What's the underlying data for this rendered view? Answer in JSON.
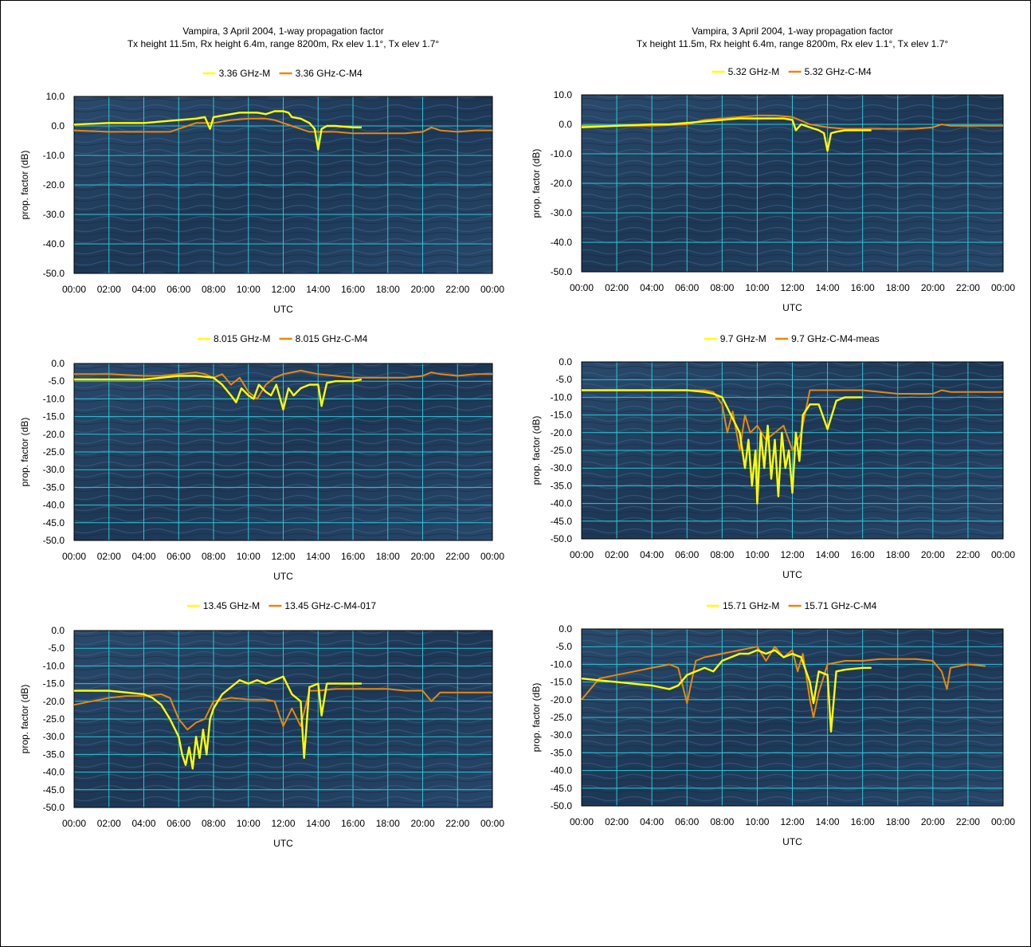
{
  "colors": {
    "series_measured": "#ffff00",
    "series_model": "#e8880c",
    "grid": "#2ec6d6",
    "plot_background": "#1f3a58"
  },
  "x_ticks": [
    "00:00",
    "02:00",
    "04:00",
    "06:00",
    "08:00",
    "10:00",
    "12:00",
    "14:00",
    "16:00",
    "18:00",
    "20:00",
    "22:00",
    "00:00"
  ],
  "charts": [
    {
      "title_line1": "Vampira, 3 April 2004, 1-way propagation factor",
      "title_line2": "Tx height 11.5m, Rx height 6.4m, range 8200m, Rx elev 1.1°, Tx elev 1.7°",
      "xlabel": "UTC",
      "ylabel": "prop. factor (dB)",
      "legend": [
        "3.36 GHz-M",
        "3.36 GHz-C-M4"
      ],
      "y_ticks": [
        "10.0",
        "0.0",
        "-10.0",
        "-20.0",
        "-30.0",
        "-40.0",
        "-50.0"
      ]
    },
    {
      "title_line1": "Vampira, 3 April 2004, 1-way propagation factor",
      "title_line2": "Tx height 11.5m, Rx height 6.4m, range 8200m, Rx elev 1.1°, Tx elev 1.7°",
      "xlabel": "UTC",
      "ylabel": "prop. factor (dB)",
      "legend": [
        "5.32 GHz-M",
        "5.32 GHz-C-M4"
      ],
      "y_ticks": [
        "10.0",
        "0.0",
        "-10.0",
        "-20.0",
        "-30.0",
        "-40.0",
        "-50.0"
      ]
    },
    {
      "title_line1": "",
      "title_line2": "",
      "xlabel": "UTC",
      "ylabel": "prop. factor (dB)",
      "legend": [
        "8.015 GHz-M",
        "8.015 GHz-C-M4"
      ],
      "y_ticks": [
        "0.0",
        "-5.0",
        "-10.0",
        "-15.0",
        "-20.0",
        "-25.0",
        "-30.0",
        "-35.0",
        "-40.0",
        "-45.0",
        "-50.0"
      ]
    },
    {
      "title_line1": "",
      "title_line2": "",
      "xlabel": "UTC",
      "ylabel": "prop. factor (dB)",
      "legend": [
        "9.7 GHz-M",
        "9.7 GHz-C-M4-meas"
      ],
      "y_ticks": [
        "0.0",
        "-5.0",
        "-10.0",
        "-15.0",
        "-20.0",
        "-25.0",
        "-30.0",
        "-35.0",
        "-40.0",
        "-45.0",
        "-50.0"
      ]
    },
    {
      "title_line1": "",
      "title_line2": "",
      "xlabel": "UTC",
      "ylabel": "prop. factor (dB)",
      "legend": [
        "13.45 GHz-M",
        "13.45 GHz-C-M4-017"
      ],
      "y_ticks": [
        "0.0",
        "-5.0",
        "-10.0",
        "-15.0",
        "-20.0",
        "-25.0",
        "-30.0",
        "-35.0",
        "-40.0",
        "-45.0",
        "-50.0"
      ]
    },
    {
      "title_line1": "",
      "title_line2": "",
      "xlabel": "UTC",
      "ylabel": "prop. factor (dB)",
      "legend": [
        "15.71 GHz-M",
        "15.71 GHz-C-M4"
      ],
      "y_ticks": [
        "0.0",
        "-5.0",
        "-10.0",
        "-15.0",
        "-20.0",
        "-25.0",
        "-30.0",
        "-35.0",
        "-40.0",
        "-45.0",
        "-50.0"
      ]
    }
  ],
  "chart_data": [
    {
      "type": "line",
      "xlim": [
        0,
        24
      ],
      "ylim": [
        -50,
        10
      ],
      "grid": true,
      "legend_position": "top",
      "series": [
        {
          "name": "3.36 GHz-M",
          "x": [
            0,
            2,
            4,
            5,
            6,
            7,
            7.5,
            7.8,
            8,
            8.5,
            9,
            9.5,
            10,
            10.5,
            11,
            11.5,
            12,
            12.3,
            12.5,
            13,
            13.5,
            13.8,
            14,
            14.2,
            14.5,
            15,
            16,
            16.5
          ],
          "y": [
            0.5,
            1,
            1,
            1.5,
            2,
            2.5,
            3,
            -1,
            3,
            3.5,
            4,
            4.5,
            4.5,
            4.5,
            4,
            5,
            5,
            4.5,
            3,
            2.5,
            1,
            -1,
            -8,
            -1,
            0,
            0,
            -0.5,
            -0.5
          ]
        },
        {
          "name": "3.36 GHz-C-M4",
          "x": [
            0,
            2,
            4,
            5.5,
            6,
            6.5,
            7,
            8,
            9,
            10,
            11,
            11.5,
            12,
            12.5,
            13,
            13.5,
            14,
            15,
            16,
            17,
            18,
            19,
            20,
            20.5,
            21,
            22,
            23,
            24
          ],
          "y": [
            -1.5,
            -2,
            -2,
            -2,
            -1,
            0,
            1,
            1,
            2,
            2.5,
            2.5,
            2,
            1,
            0,
            -1,
            -2,
            -2,
            -2,
            -2.5,
            -2.5,
            -2.5,
            -2.5,
            -2,
            -0.5,
            -1.5,
            -2,
            -1.5,
            -1.5
          ]
        }
      ]
    },
    {
      "type": "line",
      "xlim": [
        0,
        24
      ],
      "ylim": [
        -50,
        10
      ],
      "grid": true,
      "legend_position": "top",
      "series": [
        {
          "name": "5.32 GHz-M",
          "x": [
            0,
            2,
            4,
            5,
            6,
            7,
            8,
            9,
            10,
            11,
            11.5,
            12,
            12.2,
            12.5,
            13,
            13.5,
            13.8,
            14,
            14.2,
            14.5,
            15,
            16,
            16.5
          ],
          "y": [
            -1,
            -0.5,
            0,
            0,
            0.5,
            1,
            1.5,
            2,
            2,
            2,
            2,
            1.5,
            -2,
            0,
            -1,
            -2,
            -3,
            -9,
            -3,
            -2.5,
            -2,
            -2,
            -2
          ]
        },
        {
          "name": "5.32 GHz-C-M4",
          "x": [
            0,
            2,
            4,
            6,
            7,
            8,
            9,
            10,
            11,
            12,
            13,
            14,
            15,
            16,
            17,
            18,
            19,
            20,
            20.5,
            21,
            22,
            23,
            24
          ],
          "y": [
            -0.5,
            -0.5,
            -0.5,
            0,
            1.5,
            2,
            2.5,
            3,
            3,
            2.5,
            0,
            -1,
            -1.5,
            -1.5,
            -1.5,
            -1.5,
            -1.5,
            -1,
            0,
            -0.5,
            -0.5,
            -0.5,
            -0.5
          ]
        }
      ]
    },
    {
      "type": "line",
      "xlim": [
        0,
        24
      ],
      "ylim": [
        -50,
        0
      ],
      "grid": true,
      "legend_position": "top",
      "series": [
        {
          "name": "8.015 GHz-M",
          "x": [
            0,
            2,
            4,
            5,
            6,
            7,
            8,
            8.5,
            9,
            9.3,
            9.6,
            10,
            10.3,
            10.6,
            11,
            11.3,
            11.6,
            12,
            12.3,
            12.6,
            13,
            13.5,
            14,
            14.2,
            14.5,
            15,
            16,
            16.5
          ],
          "y": [
            -4.5,
            -4.5,
            -4.5,
            -4,
            -3.5,
            -3.5,
            -4,
            -6,
            -9,
            -11,
            -7,
            -9,
            -10,
            -6,
            -8,
            -9,
            -6,
            -13,
            -7,
            -9,
            -7,
            -6,
            -6,
            -12,
            -5.5,
            -5,
            -5,
            -4.5
          ]
        },
        {
          "name": "8.015 GHz-C-M4",
          "x": [
            0,
            2,
            4,
            5,
            6,
            7,
            7.5,
            8,
            8.5,
            9,
            9.5,
            10,
            10.5,
            11,
            11.5,
            12,
            12.5,
            13,
            14,
            15,
            16,
            18,
            19,
            20,
            20.5,
            21,
            22,
            23,
            24
          ],
          "y": [
            -3,
            -3,
            -3.5,
            -3.5,
            -3,
            -2.5,
            -3,
            -4,
            -3,
            -6,
            -4,
            -8,
            -10,
            -6,
            -4,
            -3,
            -2.5,
            -2,
            -3,
            -3.5,
            -4,
            -4,
            -4,
            -3.5,
            -2.5,
            -3,
            -3.5,
            -3,
            -3
          ]
        }
      ]
    },
    {
      "type": "line",
      "xlim": [
        0,
        24
      ],
      "ylim": [
        -50,
        0
      ],
      "grid": true,
      "legend_position": "top",
      "series": [
        {
          "name": "9.7 GHz-M",
          "x": [
            0,
            2,
            4,
            6,
            7,
            7.5,
            8,
            8.5,
            9,
            9.3,
            9.5,
            9.7,
            9.9,
            10,
            10.2,
            10.4,
            10.6,
            10.8,
            11,
            11.2,
            11.4,
            11.6,
            11.8,
            12,
            12.2,
            12.4,
            12.6,
            13,
            13.5,
            14,
            14.5,
            15,
            16
          ],
          "y": [
            -8,
            -8,
            -8,
            -8,
            -8.5,
            -9,
            -10,
            -15,
            -20,
            -30,
            -22,
            -35,
            -25,
            -40,
            -20,
            -30,
            -18,
            -33,
            -22,
            -38,
            -20,
            -30,
            -25,
            -37,
            -20,
            -28,
            -15,
            -12,
            -12,
            -19,
            -11,
            -10,
            -10
          ]
        },
        {
          "name": "9.7 GHz-C-M4-meas",
          "x": [
            0,
            2,
            4,
            6,
            7,
            7.5,
            8,
            8.3,
            8.6,
            9,
            9.3,
            9.6,
            10,
            10.5,
            11,
            11.5,
            12,
            12.5,
            13,
            13.5,
            14,
            15,
            16,
            18,
            20,
            20.5,
            21,
            22,
            23,
            24
          ],
          "y": [
            -8,
            -8,
            -8,
            -8,
            -8,
            -8.5,
            -12,
            -20,
            -14,
            -25,
            -15,
            -20,
            -18,
            -22,
            -20,
            -18,
            -25,
            -20,
            -8,
            -8,
            -8,
            -8,
            -8,
            -9,
            -9,
            -8,
            -8.5,
            -8.5,
            -8.5,
            -8.5
          ]
        }
      ]
    },
    {
      "type": "line",
      "xlim": [
        0,
        24
      ],
      "ylim": [
        -50,
        0
      ],
      "grid": true,
      "legend_position": "top",
      "series": [
        {
          "name": "13.45 GHz-M",
          "x": [
            0,
            1,
            2,
            3,
            4,
            4.5,
            5,
            5.5,
            6,
            6.2,
            6.4,
            6.6,
            6.8,
            7,
            7.2,
            7.4,
            7.6,
            7.8,
            8,
            8.5,
            9,
            9.5,
            10,
            10.5,
            11,
            11.5,
            12,
            12.5,
            13,
            13.2,
            13.5,
            14,
            14.2,
            14.5,
            15,
            16,
            16.5
          ],
          "y": [
            -17,
            -17,
            -17,
            -17.5,
            -18,
            -19,
            -21,
            -25,
            -30,
            -35,
            -38,
            -33,
            -39,
            -30,
            -36,
            -28,
            -35,
            -25,
            -22,
            -18,
            -16,
            -14,
            -15,
            -14,
            -15,
            -14,
            -13,
            -18,
            -20,
            -36,
            -16,
            -15,
            -24,
            -15,
            -15,
            -15,
            -15
          ]
        },
        {
          "name": "13.45 GHz-C-M4-017",
          "x": [
            0,
            1,
            2,
            3,
            4,
            5,
            5.5,
            6,
            6.5,
            7,
            7.5,
            8,
            9,
            10,
            11,
            11.5,
            12,
            12.5,
            13,
            13.5,
            14,
            15,
            16,
            17,
            18,
            19,
            20,
            20.5,
            21,
            22,
            23,
            24
          ],
          "y": [
            -21,
            -20,
            -19,
            -18.5,
            -18.5,
            -18,
            -19,
            -25,
            -28,
            -26,
            -25,
            -20,
            -19,
            -19.5,
            -19.5,
            -20,
            -27,
            -22,
            -27,
            -17,
            -17,
            -16.5,
            -16.5,
            -16.5,
            -16.5,
            -17,
            -17,
            -20,
            -17.5,
            -17.5,
            -17.5,
            -17.5
          ]
        }
      ]
    },
    {
      "type": "line",
      "xlim": [
        0,
        24
      ],
      "ylim": [
        -50,
        0
      ],
      "grid": true,
      "legend_position": "top",
      "series": [
        {
          "name": "15.71 GHz-M",
          "x": [
            0,
            1,
            2,
            3,
            4,
            5,
            5.5,
            6,
            6.5,
            7,
            7.5,
            8,
            8.5,
            9,
            9.5,
            10,
            10.5,
            11,
            11.5,
            12,
            12.5,
            13,
            13.2,
            13.5,
            14,
            14.2,
            14.5,
            15,
            16,
            16.5
          ],
          "y": [
            -14,
            -14.5,
            -15,
            -15.5,
            -16,
            -17,
            -16,
            -13,
            -12,
            -11,
            -12,
            -9,
            -8,
            -7,
            -7,
            -6,
            -7,
            -6,
            -8,
            -7,
            -8,
            -15,
            -21,
            -12,
            -13,
            -29,
            -12,
            -11.5,
            -11,
            -11
          ]
        },
        {
          "name": "15.71 GHz-C-M4",
          "x": [
            0,
            0.5,
            1,
            2,
            3,
            4,
            5,
            5.5,
            6,
            6.5,
            7,
            8,
            9,
            10,
            10.5,
            11,
            11.5,
            12,
            12.3,
            12.6,
            13,
            13.2,
            13.5,
            14,
            15,
            16,
            17,
            18,
            19,
            20,
            20.5,
            20.8,
            21,
            22,
            23
          ],
          "y": [
            -20,
            -17,
            -14,
            -13,
            -12,
            -11,
            -10,
            -11,
            -21,
            -9,
            -8,
            -7,
            -6,
            -5,
            -9,
            -5,
            -8,
            -6,
            -12,
            -7,
            -20,
            -25,
            -18,
            -10,
            -9,
            -9,
            -8.5,
            -8.5,
            -8.5,
            -9,
            -12,
            -17,
            -11,
            -10,
            -10.5
          ]
        }
      ]
    }
  ]
}
